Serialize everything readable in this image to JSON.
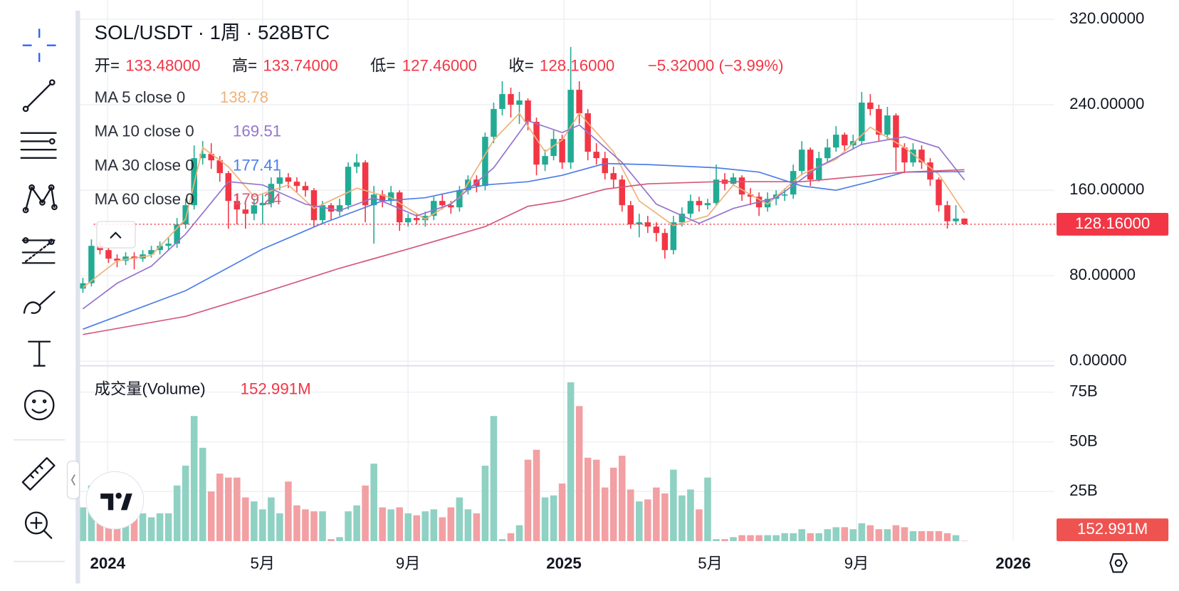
{
  "header": {
    "symbol": "SOL/USDT · 1周 · 528BTC",
    "ohlc": [
      {
        "label": "开=",
        "value": "133.48000"
      },
      {
        "label": "高=",
        "value": "133.74000"
      },
      {
        "label": "低=",
        "value": "127.46000"
      },
      {
        "label": "收=",
        "value": "128.16000"
      }
    ],
    "change": "−5.32000 (−3.99%)"
  },
  "chart_data": {
    "type": "candlestick",
    "up_color": "#22ab94",
    "down_color": "#f23645",
    "grid": true,
    "xlim": [
      -0.5,
      113.5
    ],
    "xticks": [
      {
        "value": 2.9,
        "label": "2024"
      },
      {
        "value": 21,
        "label": "5月"
      },
      {
        "value": 38,
        "label": "9月"
      },
      {
        "value": 56.2,
        "label": "2025"
      },
      {
        "value": 73.3,
        "label": "5月"
      },
      {
        "value": 90.4,
        "label": "9月"
      },
      {
        "value": 108.7,
        "label": "2026"
      }
    ],
    "ylim": [
      0,
      338
    ],
    "yticks": [
      {
        "value": 0,
        "label": "0.00000"
      },
      {
        "value": 80,
        "label": "80.00000"
      },
      {
        "value": 160,
        "label": "160.00000"
      },
      {
        "value": 240,
        "label": "240.00000"
      },
      {
        "value": 320,
        "label": "320.00000"
      }
    ],
    "price_line": {
      "value": 128.16,
      "label": "128.16000"
    },
    "x": [
      0,
      1,
      2,
      3,
      4,
      5,
      6,
      7,
      8,
      9,
      10,
      11,
      12,
      13,
      14,
      15,
      16,
      17,
      18,
      19,
      20,
      21,
      22,
      23,
      24,
      25,
      26,
      27,
      28,
      29,
      30,
      31,
      32,
      33,
      34,
      35,
      36,
      37,
      38,
      39,
      40,
      41,
      42,
      43,
      44,
      45,
      46,
      47,
      48,
      49,
      50,
      51,
      52,
      53,
      54,
      55,
      56,
      57,
      58,
      59,
      60,
      61,
      62,
      63,
      64,
      65,
      66,
      67,
      68,
      69,
      70,
      71,
      72,
      73,
      74,
      75,
      76,
      77,
      78,
      79,
      80,
      81,
      82,
      83,
      84,
      85,
      86,
      87,
      88,
      89,
      90,
      91,
      92,
      93,
      94,
      95,
      96,
      97,
      98,
      99,
      100,
      101,
      102,
      103
    ],
    "open": [
      68,
      73,
      108,
      104,
      96,
      94,
      98,
      96,
      100,
      104,
      108,
      110,
      128,
      146,
      190,
      194,
      188,
      176,
      150,
      142,
      138,
      146,
      148,
      166,
      172,
      168,
      164,
      160,
      132,
      146,
      140,
      146,
      182,
      186,
      146,
      156,
      150,
      158,
      130,
      134,
      132,
      136,
      150,
      146,
      144,
      160,
      170,
      164,
      210,
      236,
      250,
      240,
      244,
      224,
      184,
      192,
      208,
      186,
      254,
      232,
      196,
      190,
      176,
      170,
      146,
      128,
      130,
      126,
      120,
      104,
      130,
      138,
      150,
      146,
      148,
      170,
      166,
      172,
      156,
      154,
      144,
      152,
      156,
      156,
      178,
      198,
      170,
      190,
      200,
      212,
      202,
      206,
      242,
      236,
      212,
      230,
      200,
      186,
      198,
      186,
      170,
      146,
      131,
      133.48
    ],
    "high": [
      78,
      114,
      112,
      106,
      100,
      102,
      102,
      104,
      108,
      112,
      116,
      134,
      152,
      202,
      206,
      204,
      192,
      178,
      156,
      150,
      152,
      156,
      172,
      178,
      176,
      172,
      168,
      162,
      150,
      148,
      152,
      186,
      194,
      188,
      164,
      160,
      164,
      160,
      138,
      138,
      140,
      154,
      156,
      150,
      164,
      174,
      174,
      214,
      242,
      262,
      256,
      252,
      246,
      228,
      198,
      216,
      212,
      294,
      262,
      236,
      204,
      196,
      182,
      174,
      150,
      138,
      136,
      130,
      124,
      136,
      144,
      156,
      154,
      152,
      184,
      176,
      176,
      174,
      162,
      158,
      158,
      160,
      162,
      184,
      206,
      200,
      196,
      208,
      220,
      214,
      212,
      252,
      250,
      240,
      238,
      232,
      204,
      204,
      202,
      190,
      172,
      150,
      146,
      133.74
    ],
    "low": [
      64,
      70,
      100,
      92,
      88,
      90,
      86,
      93,
      97,
      100,
      104,
      106,
      124,
      142,
      184,
      180,
      168,
      124,
      128,
      124,
      132,
      128,
      144,
      160,
      162,
      158,
      154,
      126,
      128,
      132,
      136,
      142,
      176,
      130,
      110,
      144,
      146,
      122,
      126,
      128,
      126,
      132,
      142,
      138,
      140,
      156,
      158,
      160,
      204,
      230,
      228,
      222,
      216,
      174,
      178,
      188,
      180,
      180,
      222,
      188,
      184,
      170,
      162,
      140,
      124,
      116,
      120,
      112,
      96,
      100,
      126,
      134,
      140,
      142,
      146,
      160,
      164,
      150,
      146,
      136,
      140,
      146,
      150,
      152,
      174,
      164,
      168,
      186,
      196,
      196,
      198,
      202,
      230,
      206,
      208,
      178,
      176,
      182,
      180,
      164,
      140,
      124,
      128,
      127.46
    ],
    "close": [
      73,
      108,
      104,
      96,
      94,
      98,
      96,
      100,
      104,
      108,
      110,
      128,
      146,
      190,
      194,
      188,
      176,
      150,
      142,
      138,
      146,
      148,
      166,
      172,
      168,
      164,
      160,
      132,
      146,
      140,
      146,
      182,
      186,
      146,
      156,
      150,
      158,
      130,
      134,
      132,
      136,
      150,
      146,
      144,
      160,
      170,
      164,
      210,
      236,
      250,
      240,
      244,
      224,
      184,
      192,
      208,
      186,
      254,
      232,
      196,
      190,
      176,
      170,
      146,
      128,
      130,
      126,
      120,
      104,
      130,
      138,
      150,
      146,
      148,
      170,
      166,
      172,
      156,
      154,
      144,
      152,
      156,
      156,
      178,
      198,
      170,
      190,
      200,
      212,
      202,
      206,
      242,
      236,
      212,
      230,
      200,
      186,
      198,
      186,
      170,
      146,
      131,
      133.48,
      128.16
    ],
    "series": [
      {
        "name": "MA 5 close 0",
        "color": "#f0b27a",
        "legend_value": 138.78,
        "x": [
          0,
          4,
          8,
          12,
          14,
          17,
          20,
          24,
          27,
          32,
          36,
          40,
          44,
          48,
          51,
          54,
          56,
          58,
          62,
          65,
          69,
          73,
          76,
          80,
          84,
          88,
          92,
          96,
          100,
          103
        ],
        "values": [
          69,
          94,
          99,
          133,
          200,
          182,
          154,
          165,
          143,
          162,
          153,
          133,
          153,
          207,
          232,
          196,
          207,
          232,
          196,
          150,
          127,
          136,
          165,
          147,
          175,
          189,
          219,
          200,
          175,
          138.78
        ]
      },
      {
        "name": "MA 10 close 0",
        "color": "#9575cd",
        "legend_value": 169.51,
        "x": [
          0,
          4,
          8,
          12,
          17,
          21,
          26,
          30,
          34,
          39,
          43,
          48,
          52,
          56,
          58,
          63,
          67,
          72,
          76,
          81,
          86,
          91,
          96,
          100,
          103
        ],
        "values": [
          49,
          73,
          89,
          119,
          168,
          165,
          147,
          141,
          153,
          136,
          147,
          181,
          225,
          214,
          221,
          186,
          147,
          129,
          143,
          153,
          182,
          203,
          210,
          200,
          169.51
        ]
      },
      {
        "name": "MA 30 close 0",
        "color": "#4d7ee8",
        "legend_value": 177.41,
        "x": [
          0,
          12,
          21,
          28,
          35,
          40,
          47,
          52,
          56,
          61,
          66,
          74,
          79,
          84,
          88,
          92,
          96,
          103
        ],
        "values": [
          30,
          66,
          105,
          129,
          150,
          153,
          165,
          168,
          174,
          185,
          184,
          181,
          177,
          164,
          160,
          168,
          177,
          177.41
        ]
      },
      {
        "name": "MA 60 close 0",
        "color": "#d4587a",
        "legend_value": 179.24,
        "x": [
          0,
          12,
          21,
          30,
          38,
          47,
          52,
          56,
          61,
          66,
          74,
          84,
          92,
          96,
          103
        ],
        "values": [
          25,
          42,
          64,
          87,
          105,
          126,
          145,
          150,
          161,
          166,
          168,
          168,
          174,
          177,
          179.24
        ]
      }
    ],
    "volume": {
      "title": "成交量(Volume)",
      "up_color": "#8fd1c3",
      "down_color": "#f2a0a3",
      "last": {
        "value": 0.152991,
        "label": "152.991M"
      },
      "ylim": [
        0,
        86
      ],
      "yticks": [
        {
          "value": 25,
          "label": "25B"
        },
        {
          "value": 50,
          "label": "50B"
        },
        {
          "value": 75,
          "label": "75B"
        }
      ],
      "values": [
        17,
        28,
        28,
        25,
        25,
        22,
        20,
        14,
        12,
        14,
        14,
        28,
        38,
        63,
        47,
        25,
        34,
        32,
        32,
        22,
        20,
        16,
        22,
        14,
        30,
        18,
        16,
        15,
        15,
        1,
        2,
        15,
        18,
        28,
        39,
        17,
        16,
        17,
        14,
        13,
        15,
        16,
        12,
        17,
        22,
        16,
        14,
        38,
        63,
        1,
        4,
        8,
        41,
        46,
        22,
        23,
        29,
        80,
        68,
        42,
        41,
        27,
        37,
        43,
        26,
        20,
        21,
        27,
        24,
        36,
        23,
        26,
        16,
        32,
        1,
        1,
        2,
        3,
        3,
        3,
        3,
        3,
        4,
        4,
        6,
        4,
        4,
        6,
        7,
        7,
        6,
        9,
        8,
        6,
        6,
        8,
        7,
        5,
        5,
        5,
        5,
        4,
        3,
        0.152991
      ]
    }
  }
}
